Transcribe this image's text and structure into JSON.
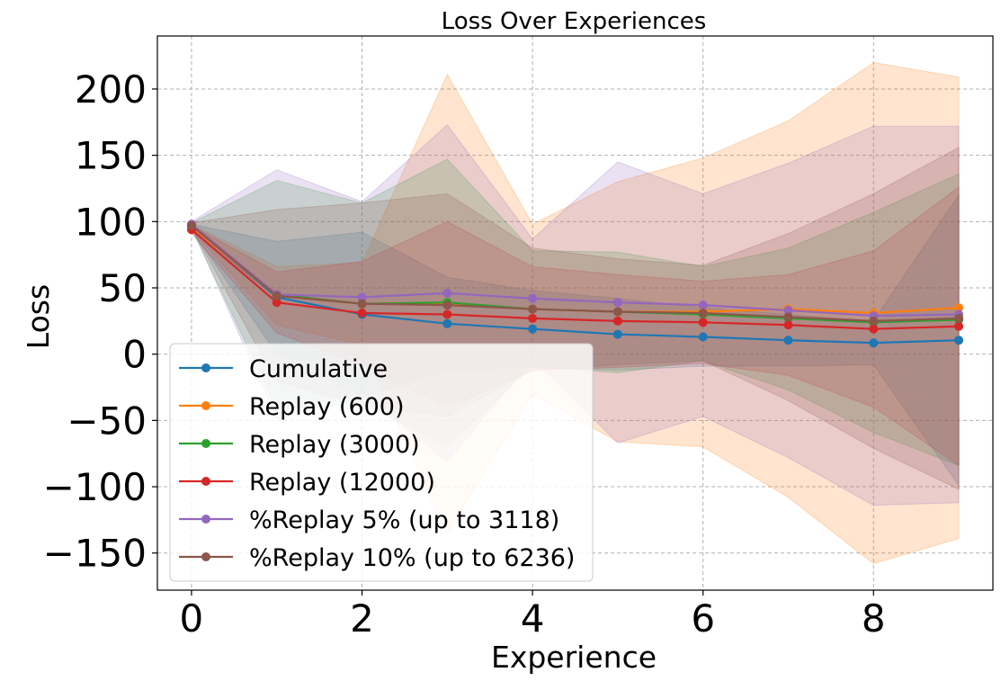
{
  "chart_data": {
    "type": "line",
    "title": "Loss Over Experiences",
    "xlabel": "Experience",
    "ylabel": "Loss",
    "xlim": [
      -0.4,
      9.4
    ],
    "ylim": [
      -178,
      240
    ],
    "xticks": [
      0,
      2,
      4,
      6,
      8
    ],
    "xtick_labels": [
      "0",
      "2",
      "4",
      "6",
      "8"
    ],
    "yticks": [
      -150,
      -100,
      -50,
      0,
      50,
      100,
      150,
      200
    ],
    "ytick_labels": [
      "−150",
      "−100",
      "−50",
      "0",
      "50",
      "100",
      "150",
      "200"
    ],
    "grid": true,
    "legend_position": "lower-left",
    "x": [
      0,
      1,
      2,
      3,
      4,
      5,
      6,
      7,
      8,
      9
    ],
    "series": [
      {
        "name": "Cumulative",
        "color": "#1f77b4",
        "values": [
          96,
          43,
          30,
          23,
          19,
          15,
          13,
          10.5,
          8.5,
          10.5
        ],
        "upper": [
          98,
          85,
          92,
          58,
          48,
          42,
          35,
          30,
          25,
          120
        ],
        "lower": [
          94,
          0,
          -32,
          -12,
          -10,
          -12,
          -9,
          -9,
          -8,
          -99
        ]
      },
      {
        "name": "Replay (600)",
        "color": "#ff7f0e",
        "values": [
          96,
          44,
          38,
          38,
          34,
          32,
          32,
          34,
          31,
          35
        ],
        "upper": [
          98,
          66,
          69,
          211,
          98,
          130,
          148,
          176,
          220,
          209
        ],
        "lower": [
          94,
          22,
          7,
          -135,
          -30,
          -66,
          -70,
          -108,
          -158,
          -139
        ]
      },
      {
        "name": "Replay (3000)",
        "color": "#2ca02c",
        "values": [
          97,
          45,
          38,
          39,
          34,
          32,
          30,
          27,
          24,
          26
        ],
        "upper": [
          99,
          131,
          114,
          147,
          78,
          77,
          66,
          80,
          107,
          136
        ],
        "lower": [
          95,
          -41,
          -38,
          -69,
          -9,
          -14,
          -5,
          -27,
          -59,
          -84
        ]
      },
      {
        "name": "Replay (12000)",
        "color": "#d62728",
        "values": [
          94,
          39,
          31,
          30,
          27,
          25,
          24,
          22,
          19,
          21
        ],
        "upper": [
          97,
          62,
          70,
          100,
          66,
          60,
          55,
          60,
          78,
          126
        ],
        "lower": [
          91,
          16,
          -8,
          -40,
          -12,
          -10,
          -7,
          -16,
          -40,
          -84
        ]
      },
      {
        "name": "%Replay 5% (up to 3118)",
        "color": "#9467bd",
        "values": [
          98,
          45,
          43,
          46,
          42,
          39,
          37,
          33,
          29,
          30
        ],
        "upper": [
          100,
          139,
          115,
          173,
          87,
          145,
          121,
          144,
          172,
          172
        ],
        "lower": [
          96,
          -49,
          -29,
          -81,
          -3,
          -67,
          -47,
          -78,
          -114,
          -112
        ]
      },
      {
        "name": "%Replay 10% (up to 6236)",
        "color": "#8c564b",
        "values": [
          97,
          44,
          38,
          37,
          34,
          32,
          31,
          28,
          25,
          27
        ],
        "upper": [
          99,
          109,
          114,
          121,
          80,
          72,
          67,
          91,
          121,
          156
        ],
        "lower": [
          95,
          -21,
          -38,
          -47,
          -12,
          -8,
          -5,
          -35,
          -71,
          -102
        ]
      }
    ]
  }
}
